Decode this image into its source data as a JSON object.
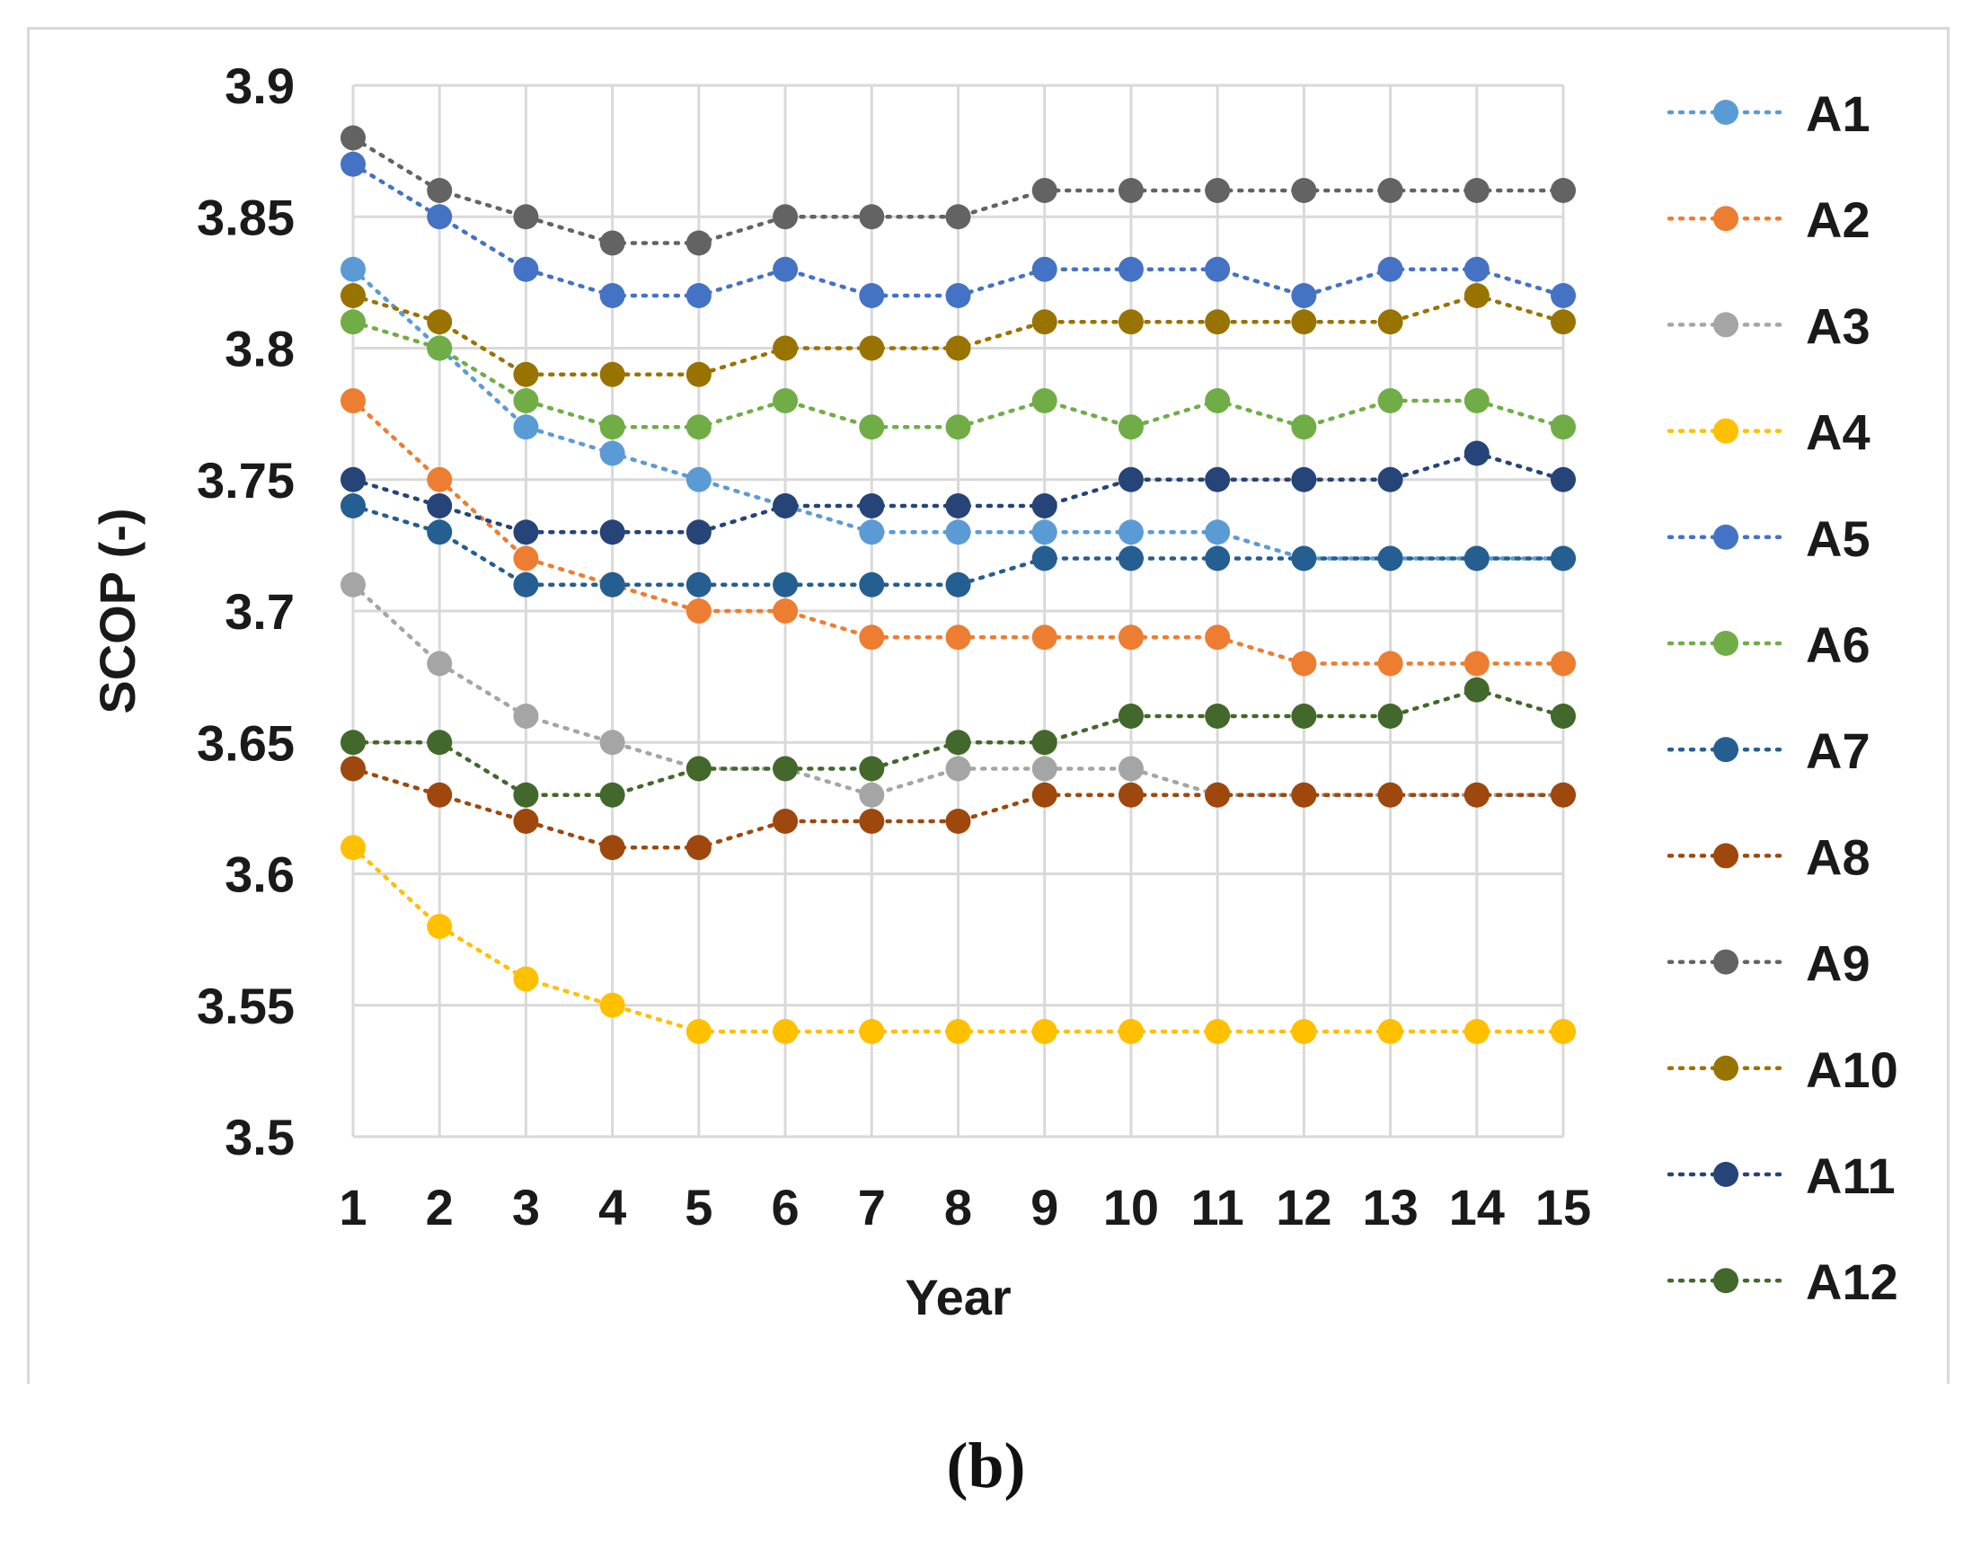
{
  "chart_data": {
    "type": "line",
    "title": "",
    "xlabel": "Year",
    "ylabel": "SCOP (-)",
    "x": [
      1,
      2,
      3,
      4,
      5,
      6,
      7,
      8,
      9,
      10,
      11,
      12,
      13,
      14,
      15
    ],
    "ylim": [
      3.5,
      3.9
    ],
    "yticks": [
      "3.5",
      "3.55",
      "3.6",
      "3.65",
      "3.7",
      "3.75",
      "3.8",
      "3.85",
      "3.9"
    ],
    "grid": true,
    "legend_position": "right",
    "series": [
      {
        "name": "A1",
        "color": "#5B9BD5",
        "values": [
          3.83,
          3.8,
          3.77,
          3.76,
          3.75,
          3.74,
          3.73,
          3.73,
          3.73,
          3.73,
          3.73,
          3.72,
          3.72,
          3.72,
          3.72
        ]
      },
      {
        "name": "A2",
        "color": "#ED7D31",
        "values": [
          3.78,
          3.75,
          3.72,
          3.71,
          3.7,
          3.7,
          3.69,
          3.69,
          3.69,
          3.69,
          3.69,
          3.68,
          3.68,
          3.68,
          3.68
        ]
      },
      {
        "name": "A3",
        "color": "#A5A5A5",
        "values": [
          3.71,
          3.68,
          3.66,
          3.65,
          3.64,
          3.64,
          3.63,
          3.64,
          3.64,
          3.64,
          3.63,
          3.63,
          3.63,
          3.63,
          3.63
        ]
      },
      {
        "name": "A4",
        "color": "#FFC000",
        "values": [
          3.61,
          3.58,
          3.56,
          3.55,
          3.54,
          3.54,
          3.54,
          3.54,
          3.54,
          3.54,
          3.54,
          3.54,
          3.54,
          3.54,
          3.54
        ]
      },
      {
        "name": "A5",
        "color": "#4472C4",
        "values": [
          3.87,
          3.85,
          3.83,
          3.82,
          3.82,
          3.83,
          3.82,
          3.82,
          3.83,
          3.83,
          3.83,
          3.82,
          3.83,
          3.83,
          3.82
        ]
      },
      {
        "name": "A6",
        "color": "#70AD47",
        "values": [
          3.81,
          3.8,
          3.78,
          3.77,
          3.77,
          3.78,
          3.77,
          3.77,
          3.78,
          3.77,
          3.78,
          3.77,
          3.78,
          3.78,
          3.77
        ]
      },
      {
        "name": "A7",
        "color": "#255E91",
        "values": [
          3.74,
          3.73,
          3.71,
          3.71,
          3.71,
          3.71,
          3.71,
          3.71,
          3.72,
          3.72,
          3.72,
          3.72,
          3.72,
          3.72,
          3.72
        ]
      },
      {
        "name": "A8",
        "color": "#9E480E",
        "values": [
          3.64,
          3.63,
          3.62,
          3.61,
          3.61,
          3.62,
          3.62,
          3.62,
          3.63,
          3.63,
          3.63,
          3.63,
          3.63,
          3.63,
          3.63
        ]
      },
      {
        "name": "A9",
        "color": "#636363",
        "values": [
          3.88,
          3.86,
          3.85,
          3.84,
          3.84,
          3.85,
          3.85,
          3.85,
          3.86,
          3.86,
          3.86,
          3.86,
          3.86,
          3.86,
          3.86
        ]
      },
      {
        "name": "A10",
        "color": "#997300",
        "values": [
          3.82,
          3.81,
          3.79,
          3.79,
          3.79,
          3.8,
          3.8,
          3.8,
          3.81,
          3.81,
          3.81,
          3.81,
          3.81,
          3.82,
          3.81
        ]
      },
      {
        "name": "A11",
        "color": "#264478",
        "values": [
          3.75,
          3.74,
          3.73,
          3.73,
          3.73,
          3.74,
          3.74,
          3.74,
          3.74,
          3.75,
          3.75,
          3.75,
          3.75,
          3.76,
          3.75
        ]
      },
      {
        "name": "A12",
        "color": "#43682B",
        "values": [
          3.65,
          3.65,
          3.63,
          3.63,
          3.64,
          3.64,
          3.64,
          3.65,
          3.65,
          3.66,
          3.66,
          3.66,
          3.66,
          3.67,
          3.66
        ]
      }
    ]
  },
  "panel_label": "(b)"
}
